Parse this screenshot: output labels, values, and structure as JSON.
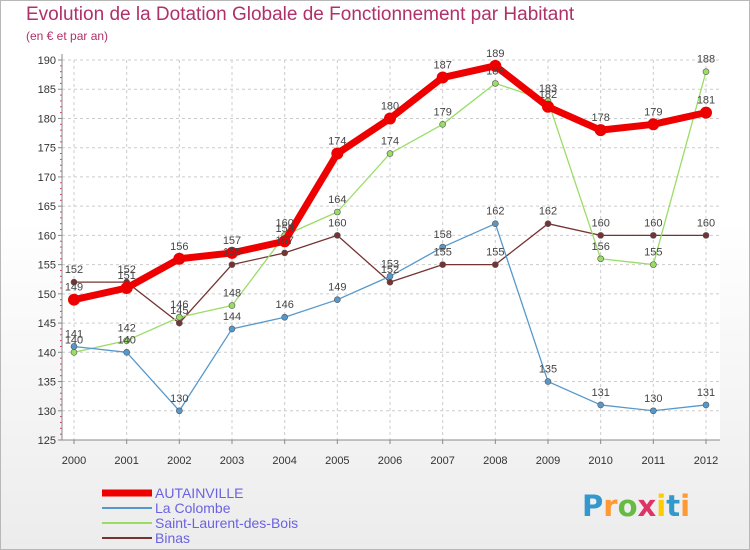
{
  "title": "Evolution de la Dotation Globale de Fonctionnement par Habitant",
  "subtitle": "(en € et par an)",
  "logo_text": "Proxiti",
  "chart_data": {
    "type": "line",
    "title": "Evolution de la Dotation Globale de Fonctionnement par Habitant",
    "subtitle": "(en € et par an)",
    "xlabel": "",
    "ylabel": "",
    "ylim": [
      125,
      190
    ],
    "yticks": [
      125,
      130,
      135,
      140,
      145,
      150,
      155,
      160,
      165,
      170,
      175,
      180,
      185,
      190
    ],
    "x": [
      "2000",
      "2001",
      "2002",
      "2003",
      "2004",
      "2005",
      "2006",
      "2007",
      "2008",
      "2009",
      "2010",
      "2011",
      "2012"
    ],
    "grid": true,
    "legend_position": "bottom-left",
    "series": [
      {
        "name": "AUTAINVILLE",
        "color": "#ee0000",
        "values": [
          149,
          151,
          156,
          157,
          159,
          174,
          180,
          187,
          189,
          182,
          178,
          179,
          181
        ],
        "labels": [
          "149",
          "151",
          "156",
          "157",
          "159",
          "174",
          "180",
          "187",
          "189",
          "182",
          "178",
          "179",
          "181"
        ]
      },
      {
        "name": "La Colombe",
        "color": "#5599cc",
        "values": [
          141,
          140,
          130,
          144,
          146,
          149,
          153,
          158,
          162,
          135,
          131,
          130,
          131
        ],
        "labels": [
          "141",
          "140",
          "130",
          "144",
          "146",
          "149",
          "153",
          "158",
          "162",
          "135",
          "131",
          "130",
          "131"
        ]
      },
      {
        "name": "Saint-Laurent-des-Bois",
        "color": "#99dd66",
        "values": [
          140,
          142,
          146,
          148,
          160,
          164,
          174,
          179,
          186,
          183,
          156,
          155,
          188
        ],
        "labels": [
          "140",
          "142",
          "146",
          "148",
          "160",
          "164",
          "174",
          "179",
          "186",
          "183",
          "156",
          "155",
          "188"
        ]
      },
      {
        "name": "Binas",
        "color": "#773333",
        "values": [
          152,
          152,
          145,
          155,
          157,
          160,
          152,
          155,
          155,
          162,
          160,
          160,
          160
        ],
        "labels": [
          "152",
          "152",
          "145",
          "155",
          "157",
          "160",
          "152",
          "155",
          "155",
          "162",
          "160",
          "160",
          "160"
        ]
      }
    ]
  }
}
